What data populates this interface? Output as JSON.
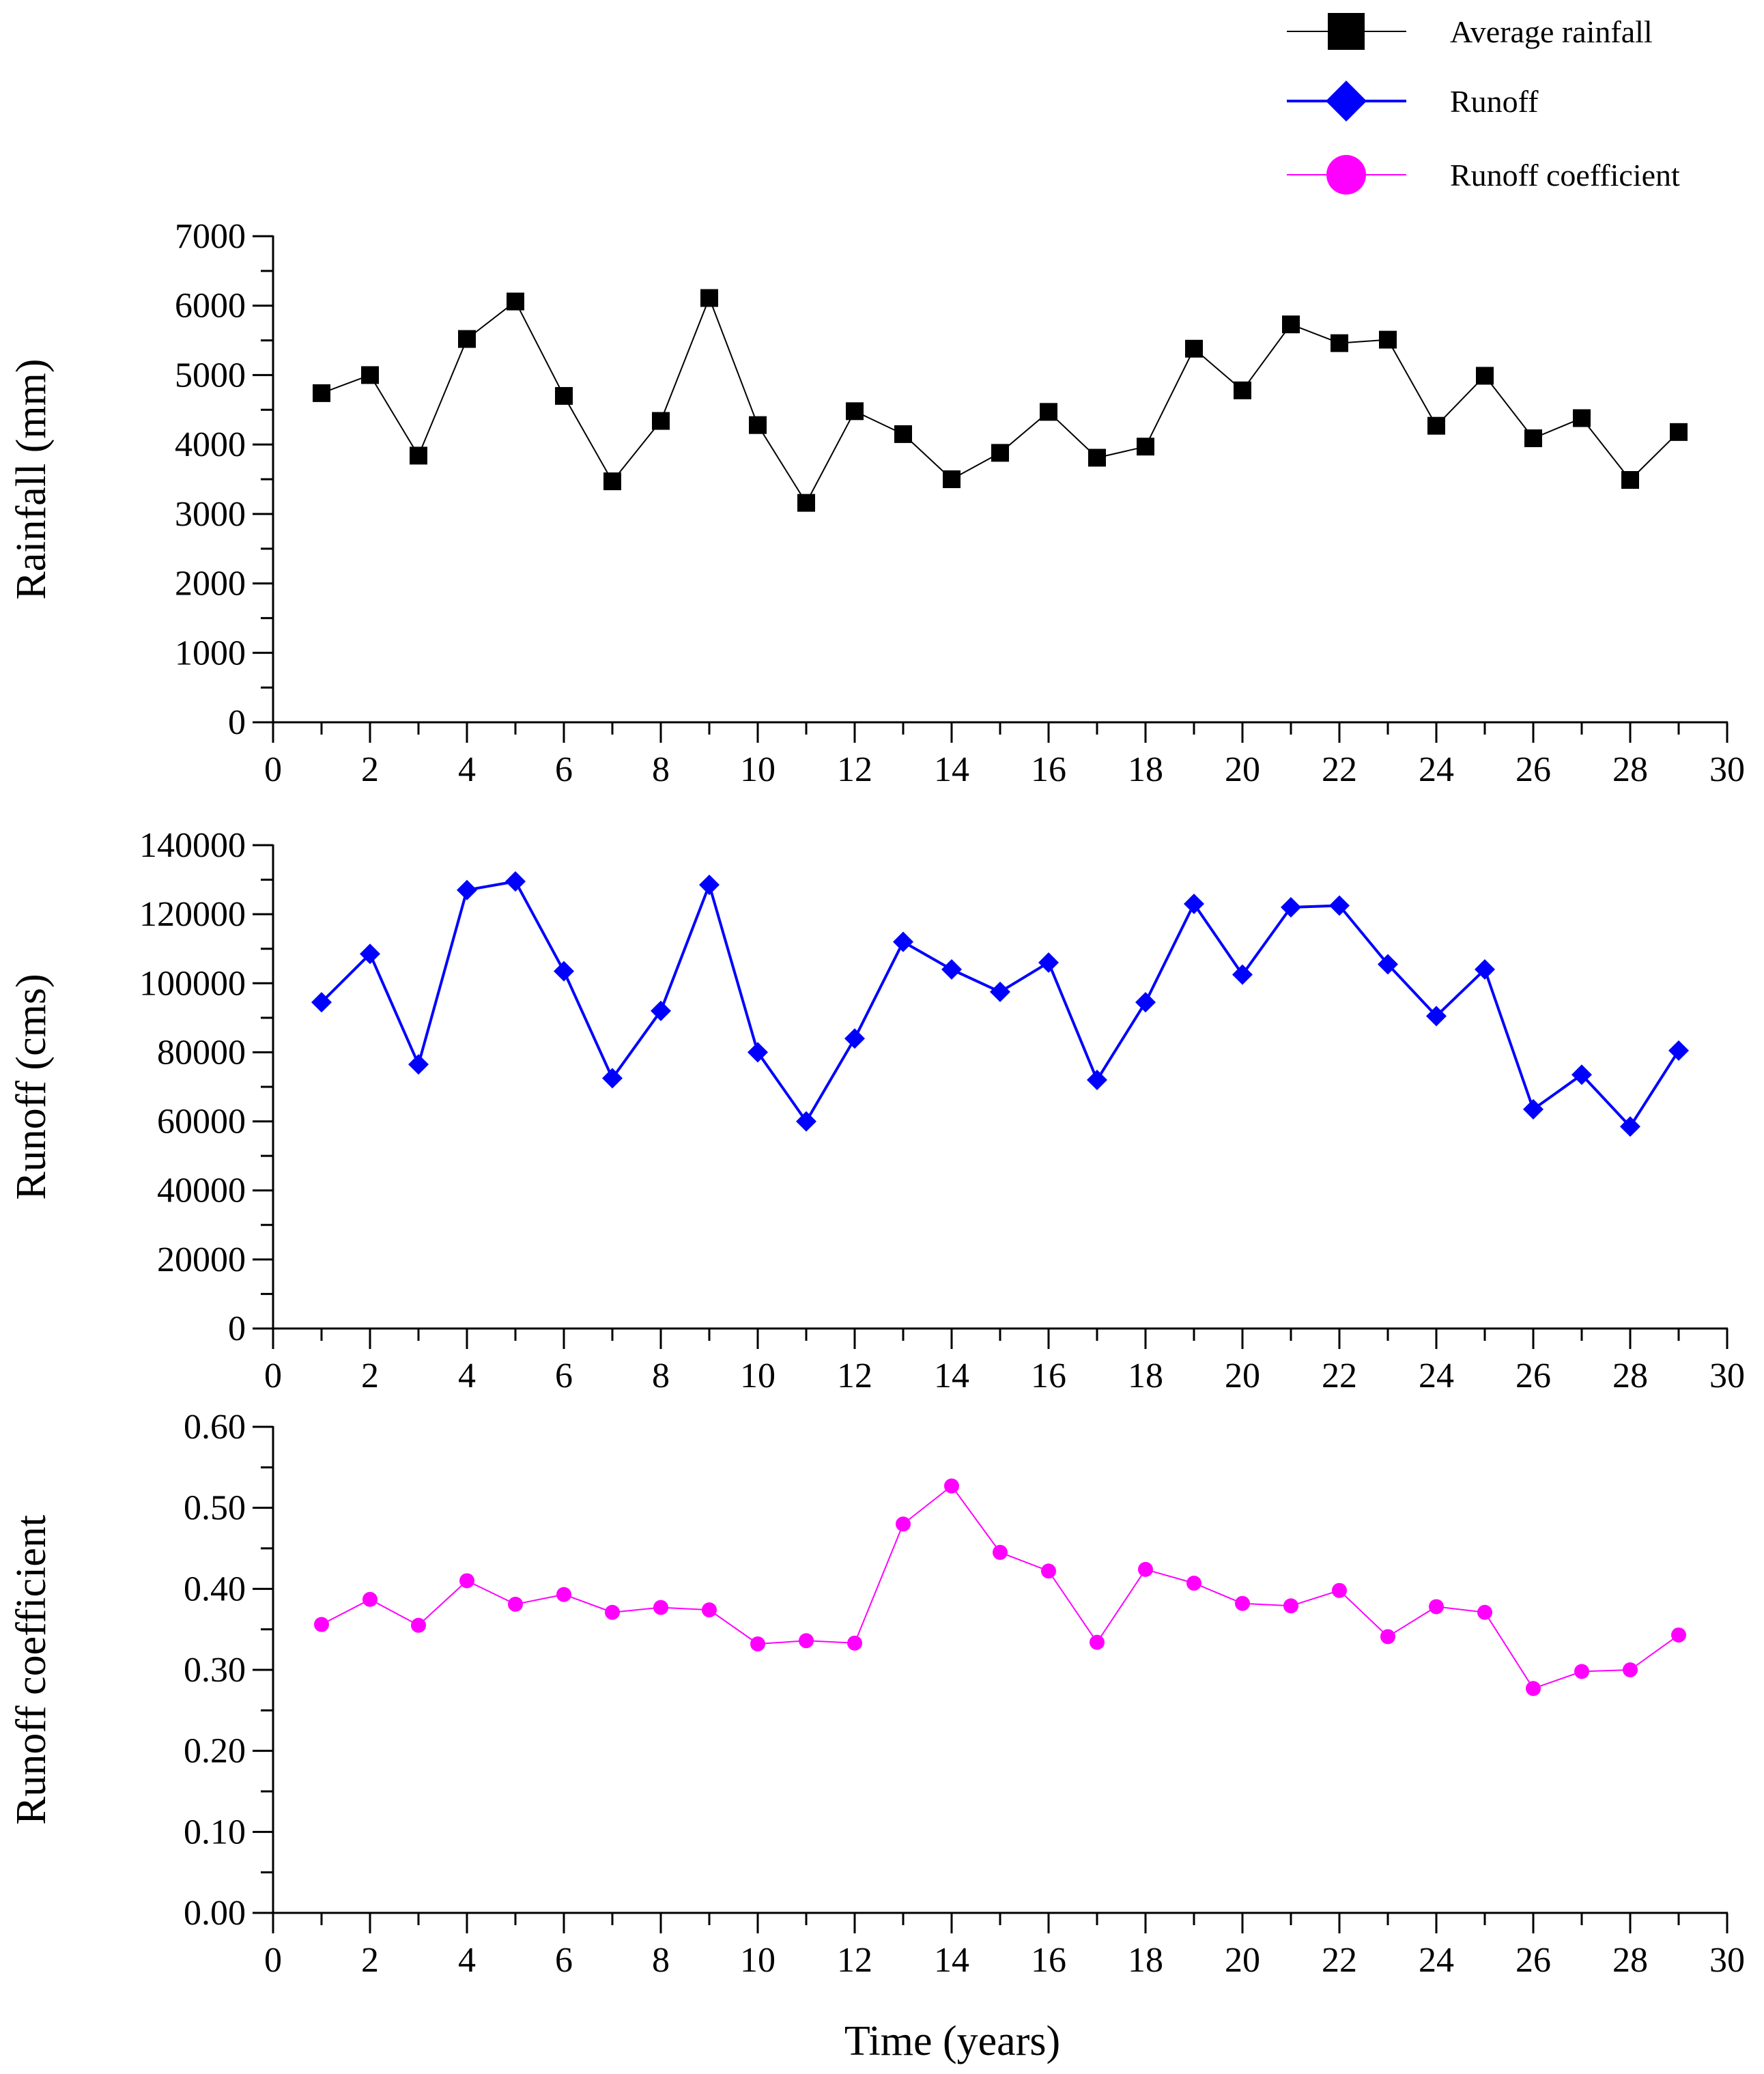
{
  "legend": {
    "items": [
      {
        "label": "Average rainfall",
        "color": "#000000",
        "marker": "square"
      },
      {
        "label": "Runoff",
        "color": "#0000ff",
        "marker": "diamond"
      },
      {
        "label": "Runoff coefficient",
        "color": "#ff00ff",
        "marker": "circle"
      }
    ]
  },
  "chart_data": [
    {
      "type": "line",
      "title": "",
      "xlabel": "",
      "ylabel": "Rainfall (mm)",
      "xlim": [
        0,
        30
      ],
      "ylim": [
        0,
        7000
      ],
      "x_ticks": [
        "0",
        "2",
        "4",
        "6",
        "8",
        "10",
        "12",
        "14",
        "16",
        "18",
        "20",
        "22",
        "24",
        "26",
        "28",
        "30"
      ],
      "y_ticks": [
        "0",
        "1000",
        "2000",
        "3000",
        "4000",
        "5000",
        "6000",
        "7000"
      ],
      "y_tick_values": [
        0,
        1000,
        2000,
        3000,
        4000,
        5000,
        6000,
        7000
      ],
      "grid": false,
      "series": [
        {
          "name": "Average rainfall",
          "color": "#000000",
          "marker": "square",
          "x": [
            1,
            2,
            3,
            4,
            5,
            6,
            7,
            8,
            9,
            10,
            11,
            12,
            13,
            14,
            15,
            16,
            17,
            18,
            19,
            20,
            21,
            22,
            23,
            24,
            25,
            26,
            27,
            28,
            29
          ],
          "values": [
            4740,
            5000,
            3840,
            5520,
            6060,
            4700,
            3470,
            4340,
            6110,
            4280,
            3160,
            4480,
            4150,
            3500,
            3880,
            4470,
            3810,
            3970,
            5380,
            4780,
            5730,
            5460,
            5510,
            4270,
            4990,
            4090,
            4380,
            3490,
            4180
          ]
        }
      ]
    },
    {
      "type": "line",
      "title": "",
      "xlabel": "",
      "ylabel": "Runoff  (cms)",
      "xlim": [
        0,
        30
      ],
      "ylim": [
        0,
        140000
      ],
      "x_ticks": [
        "0",
        "2",
        "4",
        "6",
        "8",
        "10",
        "12",
        "14",
        "16",
        "18",
        "20",
        "22",
        "24",
        "26",
        "28",
        "30"
      ],
      "y_ticks": [
        "0",
        "20000",
        "40000",
        "60000",
        "80000",
        "100000",
        "120000",
        "140000"
      ],
      "y_tick_values": [
        0,
        20000,
        40000,
        60000,
        80000,
        100000,
        120000,
        140000
      ],
      "grid": false,
      "series": [
        {
          "name": "Runoff",
          "color": "#0000ff",
          "marker": "diamond",
          "x": [
            1,
            2,
            3,
            4,
            5,
            6,
            7,
            8,
            9,
            10,
            11,
            12,
            13,
            14,
            15,
            16,
            17,
            18,
            19,
            20,
            21,
            22,
            23,
            24,
            25,
            26,
            27,
            28,
            29
          ],
          "values": [
            94500,
            108500,
            76500,
            127000,
            129500,
            103500,
            72500,
            92000,
            128500,
            80000,
            60000,
            84000,
            112000,
            104000,
            97500,
            106000,
            72000,
            94500,
            123000,
            102500,
            122000,
            122500,
            105500,
            90500,
            104000,
            63500,
            73500,
            58500,
            80500
          ]
        }
      ]
    },
    {
      "type": "line",
      "title": "",
      "xlabel": "Time (years)",
      "ylabel": "Runoff coefficient",
      "xlim": [
        0,
        30
      ],
      "ylim": [
        0,
        0.6
      ],
      "x_ticks": [
        "0",
        "2",
        "4",
        "6",
        "8",
        "10",
        "12",
        "14",
        "16",
        "18",
        "20",
        "22",
        "24",
        "26",
        "28",
        "30"
      ],
      "y_ticks": [
        "0.00",
        "0.10",
        "0.20",
        "0.30",
        "0.40",
        "0.50",
        "0.60"
      ],
      "y_tick_values": [
        0,
        0.1,
        0.2,
        0.3,
        0.4,
        0.5,
        0.6
      ],
      "grid": false,
      "series": [
        {
          "name": "Runoff coefficient",
          "color": "#ff00ff",
          "marker": "circle",
          "x": [
            1,
            2,
            3,
            4,
            5,
            6,
            7,
            8,
            9,
            10,
            11,
            12,
            13,
            14,
            15,
            16,
            17,
            18,
            19,
            20,
            21,
            22,
            23,
            24,
            25,
            26,
            27,
            28,
            29
          ],
          "values": [
            0.356,
            0.387,
            0.355,
            0.41,
            0.381,
            0.393,
            0.371,
            0.377,
            0.374,
            0.332,
            0.336,
            0.333,
            0.48,
            0.527,
            0.445,
            0.422,
            0.334,
            0.424,
            0.407,
            0.382,
            0.379,
            0.398,
            0.341,
            0.378,
            0.371,
            0.277,
            0.298,
            0.3,
            0.343
          ]
        }
      ]
    }
  ]
}
